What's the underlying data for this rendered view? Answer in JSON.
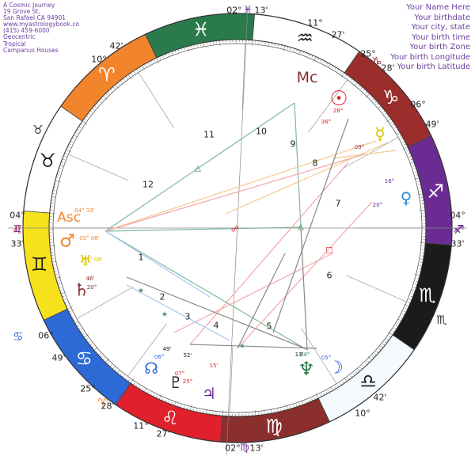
{
  "header_left": {
    "lines": [
      "A Cosmic Journey",
      "19 Grove St.",
      "San Rafael CA 94901",
      "www.myastrologybook.co",
      "(415) 459-6000",
      "Geocentric",
      "Tropical",
      "Campanus Houses"
    ]
  },
  "header_right": {
    "lines": [
      "Your Name Here",
      "Your birthdate",
      "Your city, state",
      "Your birth time",
      "Your birth Zone",
      "Your birth Longitude",
      "Your birth Latitude"
    ]
  },
  "zodiac_signs": [
    {
      "name": "aries",
      "glyph": "♈",
      "start": 0,
      "color": "#f2842c",
      "glyph_color": "#ffffff"
    },
    {
      "name": "taurus",
      "glyph": "♉",
      "start": 30,
      "color": "#ffffff",
      "glyph_color": "#222222"
    },
    {
      "name": "gemini",
      "glyph": "♊",
      "start": 60,
      "color": "#f6e11c",
      "glyph_color": "#222222"
    },
    {
      "name": "cancer",
      "glyph": "♋",
      "start": 90,
      "color": "#2d6ad6",
      "glyph_color": "#ffffff"
    },
    {
      "name": "leo",
      "glyph": "♌",
      "start": 120,
      "color": "#e0202c",
      "glyph_color": "#ffffff"
    },
    {
      "name": "virgo",
      "glyph": "♍",
      "start": 150,
      "color": "#8b2e2e",
      "glyph_color": "#ffffff"
    },
    {
      "name": "libra",
      "glyph": "♎",
      "start": 180,
      "color": "#f4fafd",
      "glyph_color": "#222222"
    },
    {
      "name": "scorpio",
      "glyph": "♏",
      "start": 210,
      "color": "#1b1b1b",
      "glyph_color": "#ffffff"
    },
    {
      "name": "sagittarius",
      "glyph": "♐",
      "start": 240,
      "color": "#6a2c93",
      "glyph_color": "#ffffff"
    },
    {
      "name": "capricorn",
      "glyph": "♑",
      "start": 270,
      "color": "#9b2d2d",
      "glyph_color": "#ffffff"
    },
    {
      "name": "aquarius",
      "glyph": "♒",
      "start": 300,
      "color": "#ffffff",
      "glyph_color": "#222222"
    },
    {
      "name": "pisces",
      "glyph": "♓",
      "start": 330,
      "color": "#2b7a4b",
      "glyph_color": "#ffffff"
    }
  ],
  "outer_sign_symbols": [
    {
      "name": "taurus",
      "glyph": "♉",
      "color": "#333333"
    },
    {
      "name": "cancer",
      "glyph": "♋",
      "color": "#2d6ad6"
    },
    {
      "name": "scorpio",
      "glyph": "♏",
      "color": "#333333"
    },
    {
      "name": "sagittarius",
      "glyph": "♐",
      "color": "#6a2c93"
    },
    {
      "name": "capricorn",
      "glyph": "♑",
      "color": "#9b2d2d"
    },
    {
      "name": "aries",
      "glyph": "♈",
      "color": "#f2842c"
    },
    {
      "name": "leo",
      "glyph": "♌",
      "color": "#e0202c"
    }
  ],
  "cusps": [
    {
      "label": "04°",
      "label2": "33'",
      "glyph": "♊",
      "side": "left"
    },
    {
      "label": "04°",
      "label2": "33'",
      "glyph": "♐",
      "side": "right"
    },
    {
      "label": "02°",
      "label2": "13'",
      "glyph": "♓",
      "side": "top"
    },
    {
      "label": "02°",
      "label2": "13'",
      "glyph": "♍",
      "side": "bottom"
    },
    {
      "label": "11°",
      "label2": "27'",
      "glyph": "♒"
    },
    {
      "label": "25°",
      "label2": "28'",
      "glyph": "♑"
    },
    {
      "label": "06°",
      "label2": "49'",
      "glyph": "♑"
    },
    {
      "label": "42'",
      "label2": "10°",
      "glyph": "♎"
    },
    {
      "label": "25°",
      "label2": "28'",
      "glyph": "♋"
    },
    {
      "label": "06°",
      "label2": "49'",
      "glyph": "♋"
    },
    {
      "label": "11°",
      "label2": "27'",
      "glyph": "♌"
    },
    {
      "label": "42'",
      "label2": "10°",
      "glyph": "♈"
    }
  ],
  "houses": [
    "1",
    "2",
    "3",
    "4",
    "5",
    "6",
    "7",
    "8",
    "9",
    "10",
    "11",
    "12"
  ],
  "angles": {
    "asc": "Asc",
    "mc": "Mc"
  },
  "planets": [
    {
      "name": "sun",
      "glyph": "☉",
      "color": "#e0202c"
    },
    {
      "name": "moon",
      "glyph": "☽",
      "color": "#2d6ad6"
    },
    {
      "name": "mercury",
      "glyph": "☿",
      "color": "#d9c200"
    },
    {
      "name": "venus",
      "glyph": "♀",
      "color": "#2d8ad6"
    },
    {
      "name": "mars",
      "glyph": "♂",
      "color": "#f2842c"
    },
    {
      "name": "jupiter",
      "glyph": "♃",
      "color": "#6a2c93"
    },
    {
      "name": "saturn",
      "glyph": "♄",
      "color": "#8b2e2e"
    },
    {
      "name": "uranus",
      "glyph": "♅",
      "color": "#d9c200"
    },
    {
      "name": "neptune",
      "glyph": "♆",
      "color": "#2b7a4b"
    },
    {
      "name": "pluto",
      "glyph": "♇",
      "color": "#222222"
    },
    {
      "name": "north-node",
      "glyph": "☊",
      "color": "#2d6ad6"
    }
  ],
  "planet_labels": [
    "04° 33'",
    "05° 08'",
    "05° 08'",
    "46'",
    "20°",
    "28°",
    "36°",
    "09°",
    "16°",
    "20°",
    "52'",
    "07°",
    "25°",
    "06°",
    "15'",
    "04°",
    "05°",
    "13'",
    "49'"
  ],
  "aspect_glyphs": [
    {
      "glyph": "△",
      "color": "#2b7a4b"
    },
    {
      "glyph": "△",
      "color": "#2b7a4b"
    },
    {
      "glyph": "✶",
      "color": "#2b7a4b"
    },
    {
      "glyph": "✶",
      "color": "#2b7a4b"
    },
    {
      "glyph": "☍",
      "color": "#e0202c"
    },
    {
      "glyph": "□",
      "color": "#e0202c"
    },
    {
      "glyph": "⚹",
      "color": "#2b7a4b"
    }
  ],
  "aspect_lines": [
    {
      "color": "#7fb8a0"
    },
    {
      "color": "#7fb8a0"
    },
    {
      "color": "#7fb8a0"
    },
    {
      "color": "#7fb8a0"
    },
    {
      "color": "#f6c98f"
    },
    {
      "color": "#f6c98f"
    },
    {
      "color": "#f6c98f"
    },
    {
      "color": "#f5a5a5"
    },
    {
      "color": "#f5a5a5"
    },
    {
      "color": "#f5a5a5"
    },
    {
      "color": "#f5a5a5"
    },
    {
      "color": "#a9c5f0"
    },
    {
      "color": "#a9c5f0"
    },
    {
      "color": "#888888"
    },
    {
      "color": "#888888"
    },
    {
      "color": "#888888"
    },
    {
      "color": "#888888"
    },
    {
      "color": "#888888"
    }
  ]
}
